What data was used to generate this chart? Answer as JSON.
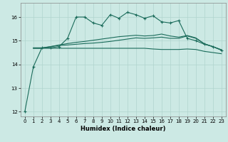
{
  "xlabel": "Humidex (Indice chaleur)",
  "xlim": [
    -0.5,
    23.5
  ],
  "ylim": [
    11.8,
    16.6
  ],
  "yticks": [
    12,
    13,
    14,
    15,
    16
  ],
  "xticks": [
    0,
    1,
    2,
    3,
    4,
    5,
    6,
    7,
    8,
    9,
    10,
    11,
    12,
    13,
    14,
    15,
    16,
    17,
    18,
    19,
    20,
    21,
    22,
    23
  ],
  "bg_color": "#cce9e4",
  "grid_color": "#b0d4ce",
  "line_color": "#1a6b5a",
  "line1_x": [
    0,
    1,
    2,
    3,
    4,
    5,
    6,
    7,
    8,
    9,
    10,
    11,
    12,
    13,
    14,
    15,
    16,
    17,
    18,
    19,
    20,
    21,
    22,
    23
  ],
  "line1_y": [
    12.0,
    13.9,
    14.7,
    14.7,
    14.75,
    15.1,
    16.0,
    16.0,
    15.75,
    15.65,
    16.1,
    15.95,
    16.2,
    16.1,
    15.95,
    16.05,
    15.8,
    15.75,
    15.85,
    15.1,
    15.0,
    14.85,
    14.75,
    14.6
  ],
  "line2_x": [
    1,
    2,
    3,
    4,
    5,
    6,
    7,
    8,
    9,
    10,
    11,
    12,
    13,
    14,
    15,
    16,
    17,
    18,
    19,
    20,
    21,
    22,
    23
  ],
  "line2_y": [
    14.7,
    14.7,
    14.75,
    14.8,
    14.82,
    14.85,
    14.88,
    14.9,
    14.93,
    14.97,
    15.02,
    15.07,
    15.12,
    15.1,
    15.12,
    15.15,
    15.1,
    15.1,
    15.2,
    15.1,
    14.87,
    14.75,
    14.6
  ],
  "line3_x": [
    1,
    2,
    3,
    4,
    5,
    6,
    7,
    8,
    9,
    10,
    11,
    12,
    13,
    14,
    15,
    16,
    17,
    18,
    19,
    20,
    21,
    22,
    23
  ],
  "line3_y": [
    14.68,
    14.68,
    14.68,
    14.68,
    14.68,
    14.68,
    14.68,
    14.68,
    14.68,
    14.68,
    14.68,
    14.68,
    14.68,
    14.68,
    14.65,
    14.63,
    14.63,
    14.63,
    14.65,
    14.63,
    14.55,
    14.5,
    14.45
  ],
  "line4_x": [
    1,
    2,
    3,
    4,
    5,
    6,
    7,
    8,
    9,
    10,
    11,
    12,
    13,
    14,
    15,
    16,
    17,
    18,
    19,
    20,
    21,
    22,
    23
  ],
  "line4_y": [
    14.68,
    14.68,
    14.75,
    14.82,
    14.88,
    14.93,
    14.97,
    15.02,
    15.07,
    15.12,
    15.17,
    15.2,
    15.23,
    15.2,
    15.22,
    15.28,
    15.2,
    15.15,
    15.22,
    15.12,
    14.87,
    14.75,
    14.62
  ]
}
